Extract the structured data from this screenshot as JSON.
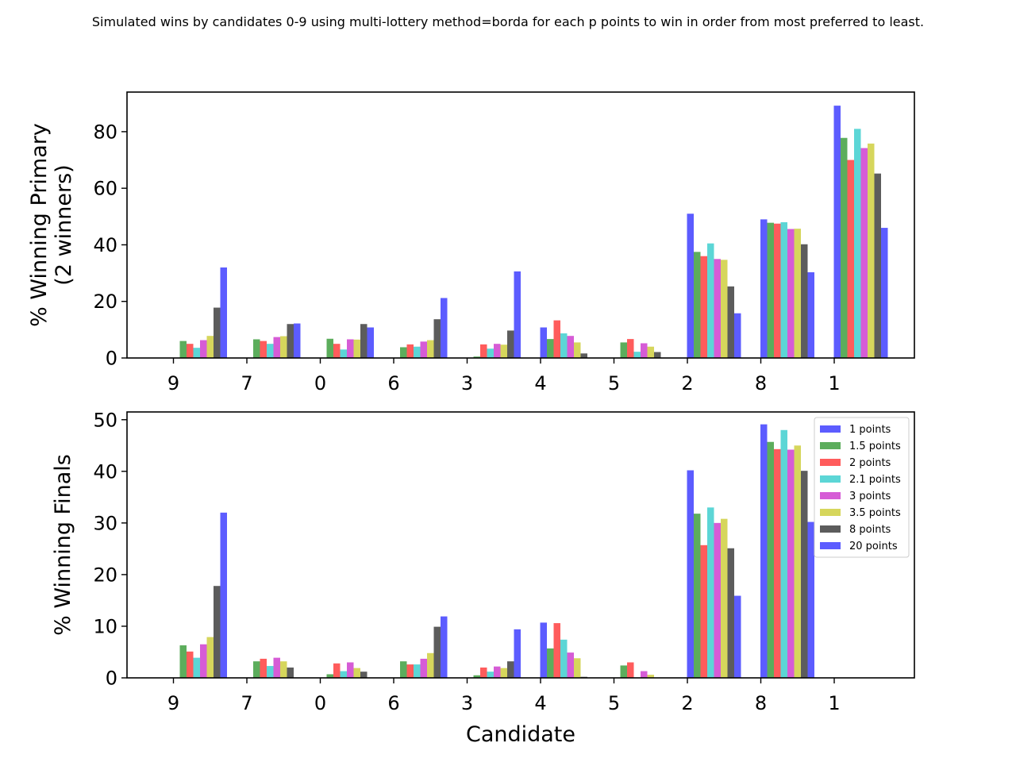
{
  "suptitle": "Simulated wins by candidates 0-9 using multi-lottery method=borda for each p points to win in order from most preferred to least.",
  "chart_data": [
    {
      "type": "bar",
      "ylabel": "% Winning Primary\n(2 winners)",
      "xlabel": "",
      "ylim": [
        0,
        94
      ],
      "yticks": [
        0,
        20,
        40,
        60,
        80
      ],
      "categories": [
        "9",
        "7",
        "0",
        "6",
        "3",
        "4",
        "5",
        "2",
        "8",
        "1"
      ],
      "legend": false,
      "series": [
        {
          "name": "1 points",
          "color": "#3333ff",
          "values": [
            0,
            0,
            0,
            0,
            0,
            10.8,
            0,
            51,
            49,
            89.2
          ]
        },
        {
          "name": "1.5 points",
          "color": "#339933",
          "values": [
            6.0,
            6.6,
            6.8,
            3.8,
            0.5,
            6.7,
            5.5,
            37.5,
            47.8,
            77.8
          ]
        },
        {
          "name": "2 points",
          "color": "#ff3333",
          "values": [
            5.0,
            6.0,
            5.0,
            4.8,
            4.8,
            13.3,
            6.7,
            36.0,
            47.5,
            70.0
          ]
        },
        {
          "name": "2.1 points",
          "color": "#33cccc",
          "values": [
            3.6,
            5.0,
            3.0,
            4.0,
            3.3,
            8.7,
            2.2,
            40.5,
            48.0,
            81.0
          ]
        },
        {
          "name": "3 points",
          "color": "#cc33cc",
          "values": [
            6.3,
            7.4,
            6.6,
            5.8,
            5.0,
            7.8,
            5.2,
            35.0,
            45.6,
            74.2
          ]
        },
        {
          "name": "3.5 points",
          "color": "#cccc33",
          "values": [
            7.8,
            7.7,
            6.5,
            6.3,
            4.7,
            5.5,
            4.0,
            34.7,
            45.7,
            75.8
          ]
        },
        {
          "name": "8 points",
          "color": "#333333",
          "values": [
            17.8,
            12.0,
            12.0,
            13.7,
            9.7,
            1.6,
            2.1,
            25.3,
            40.2,
            65.2
          ]
        },
        {
          "name": "20 points",
          "color": "#3333ff",
          "values": [
            32.0,
            12.2,
            10.8,
            21.2,
            30.6,
            0,
            0,
            15.8,
            30.3,
            46.0
          ]
        }
      ]
    },
    {
      "type": "bar",
      "ylabel": "% Winning Finals",
      "xlabel": "Candidate",
      "ylim": [
        0,
        51.5
      ],
      "yticks": [
        0,
        10,
        20,
        30,
        40,
        50
      ],
      "categories": [
        "9",
        "7",
        "0",
        "6",
        "3",
        "4",
        "5",
        "2",
        "8",
        "1"
      ],
      "legend": true,
      "legend_position": "upper right",
      "series": [
        {
          "name": "1 points",
          "color": "#3333ff",
          "values": [
            0,
            0,
            0,
            0,
            0,
            10.7,
            0,
            40.2,
            49.1,
            0
          ]
        },
        {
          "name": "1.5 points",
          "color": "#339933",
          "values": [
            6.3,
            3.2,
            0.7,
            3.2,
            0.5,
            5.7,
            2.4,
            31.8,
            45.7,
            0
          ]
        },
        {
          "name": "2 points",
          "color": "#ff3333",
          "values": [
            5.1,
            3.7,
            2.8,
            2.6,
            2.0,
            10.6,
            3.0,
            25.7,
            44.3,
            0
          ]
        },
        {
          "name": "2.1 points",
          "color": "#33cccc",
          "values": [
            3.9,
            2.3,
            1.3,
            2.6,
            1.2,
            7.4,
            0,
            33.0,
            48.0,
            0
          ]
        },
        {
          "name": "3 points",
          "color": "#cc33cc",
          "values": [
            6.5,
            3.9,
            3.0,
            3.7,
            2.2,
            4.9,
            1.3,
            30.0,
            44.2,
            0
          ]
        },
        {
          "name": "3.5 points",
          "color": "#cccc33",
          "values": [
            7.9,
            3.2,
            1.9,
            4.8,
            1.9,
            3.8,
            0.6,
            30.8,
            45.0,
            0
          ]
        },
        {
          "name": "8 points",
          "color": "#333333",
          "values": [
            17.8,
            2.0,
            1.2,
            9.9,
            3.2,
            0.2,
            0,
            25.1,
            40.1,
            0
          ]
        },
        {
          "name": "20 points",
          "color": "#3333ff",
          "values": [
            32.0,
            0,
            0,
            11.9,
            9.4,
            0,
            0,
            15.9,
            30.2,
            0
          ]
        }
      ]
    }
  ]
}
